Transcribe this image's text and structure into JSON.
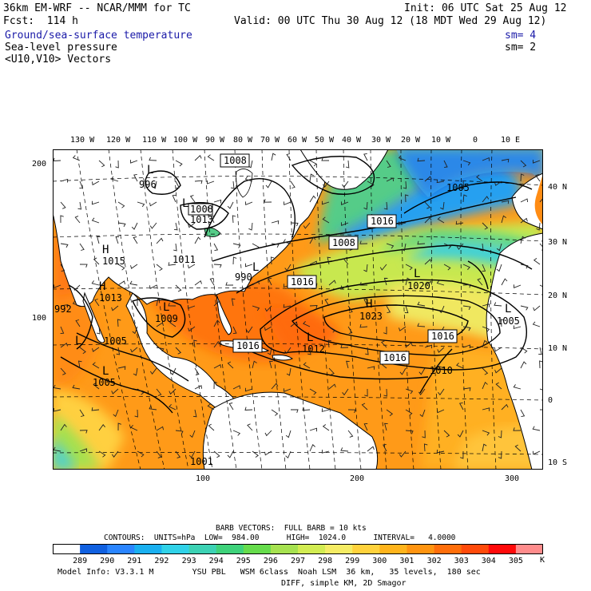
{
  "header": {
    "line1_left": "36km EM-WRF -- NCAR/MMM for TC",
    "line1_right": "Init: 06 UTC Sat 25 Aug 12",
    "line2_left": "Fcst:  114 h",
    "line2_right": "Valid: 00 UTC Thu 30 Aug 12 (18 MDT Wed 29 Aug 12)"
  },
  "fields": [
    {
      "label": "Ground/sea-surface temperature",
      "sm": "sm= 4",
      "color": "#1a1aa8"
    },
    {
      "label": "Sea-level pressure",
      "sm": "sm= 2",
      "color": "#000000"
    },
    {
      "label": "<U10,V10> Vectors",
      "sm": "",
      "color": "#000000"
    }
  ],
  "map": {
    "top_lon_labels": [
      "130 W",
      "120 W",
      "110 W",
      "100 W",
      "90 W",
      "80 W",
      "70 W",
      "60 W",
      "50 W",
      "40 W",
      "30 W",
      "20 W",
      "10 W",
      "0",
      "10 E"
    ],
    "right_lat_labels": [
      "40 N",
      "30 N",
      "20 N",
      "10 N",
      "0",
      "10 S"
    ],
    "left_grid_labels": [
      "200",
      "100"
    ],
    "bottom_grid_labels": [
      "100",
      "200",
      "300"
    ],
    "pressure_boxes": [
      "1008",
      "1008",
      "1016",
      "1008",
      "1016",
      "1016",
      "1016",
      "1016"
    ],
    "pressure_labels": [
      "996",
      "990",
      "1005",
      "1015",
      "1013",
      "1009",
      "992",
      "1005",
      "1005",
      "1020",
      "1023",
      "1012",
      "1010",
      "1005",
      "1013",
      "1011",
      "1001"
    ],
    "highs_lows": [
      "L",
      "H",
      "H",
      "L",
      "L",
      "L",
      "L",
      "H",
      "L",
      "L",
      "L",
      "L"
    ]
  },
  "footer": {
    "barb_line": "BARB VECTORS:  FULL BARB = 10 kts",
    "contours_line": "CONTOURS:  UNITS=hPa  LOW=  984.00      HIGH=  1024.0      INTERVAL=   4.0000",
    "colorbar_values": [
      "289",
      "290",
      "291",
      "292",
      "293",
      "294",
      "295",
      "296",
      "297",
      "298",
      "299",
      "300",
      "301",
      "302",
      "303",
      "304",
      "305"
    ],
    "colorbar_unit": "K",
    "colorbar_colors": [
      "#ffffff",
      "#1060e0",
      "#2a85ff",
      "#1ab0f0",
      "#30d2e8",
      "#3cd2b4",
      "#3ed27a",
      "#66dc4c",
      "#a6e250",
      "#d2ec52",
      "#f5ec64",
      "#ffd23c",
      "#ffb41c",
      "#ff9410",
      "#ff6e0a",
      "#ff4a0a",
      "#ff0a0a",
      "#ff8c8c"
    ],
    "model_info": "Model Info: V3.3.1 M        YSU PBL   WSM 6class  Noah LSM  36 km,   35 levels,  180 sec",
    "model_info2": "DIFF, simple KM, 2D Smagor"
  }
}
